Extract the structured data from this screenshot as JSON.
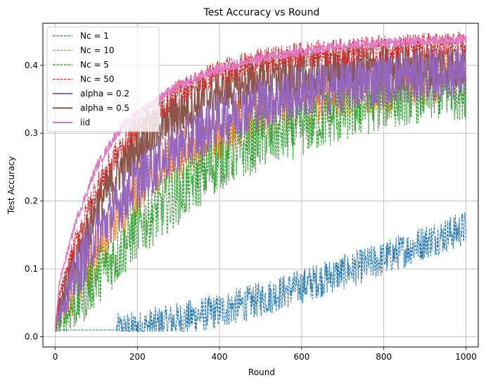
{
  "chart_data": {
    "type": "line",
    "title": "Test Accuracy vs Round",
    "xlabel": "Round",
    "ylabel": "Test Accuracy",
    "xlim": [
      -30,
      1030
    ],
    "ylim": [
      -0.015,
      0.462
    ],
    "xticks": [
      0,
      200,
      400,
      600,
      800,
      1000
    ],
    "xtick_labels": [
      "0",
      "200",
      "400",
      "600",
      "800",
      "1000"
    ],
    "yticks": [
      0.0,
      0.1,
      0.2,
      0.3,
      0.4
    ],
    "ytick_labels": [
      "0.0",
      "0.1",
      "0.2",
      "0.3",
      "0.4"
    ],
    "grid": true,
    "legend_position": "top-left",
    "series": [
      {
        "name": "Nc = 1",
        "color": "#1f77b4",
        "style": "dashed",
        "noise": 0.026,
        "x": [
          0,
          150,
          200,
          300,
          400,
          500,
          600,
          700,
          800,
          900,
          1000
        ],
        "y": [
          0.01,
          0.01,
          0.012,
          0.025,
          0.038,
          0.055,
          0.075,
          0.095,
          0.115,
          0.14,
          0.16
        ]
      },
      {
        "name": "Nc = 10",
        "color": "#ff7f0e",
        "style": "dashed",
        "noise": 0.04,
        "x": [
          0,
          10,
          50,
          100,
          150,
          200,
          300,
          400,
          500,
          600,
          700,
          800,
          900,
          1000
        ],
        "y": [
          0.01,
          0.03,
          0.07,
          0.12,
          0.17,
          0.22,
          0.27,
          0.3,
          0.33,
          0.35,
          0.36,
          0.37,
          0.38,
          0.39
        ]
      },
      {
        "name": "Nc = 5",
        "color": "#2ca02c",
        "style": "dashed",
        "noise": 0.045,
        "x": [
          0,
          10,
          50,
          100,
          150,
          200,
          300,
          400,
          500,
          600,
          700,
          800,
          900,
          1000
        ],
        "y": [
          0.01,
          0.02,
          0.05,
          0.09,
          0.12,
          0.16,
          0.21,
          0.26,
          0.29,
          0.31,
          0.33,
          0.35,
          0.36,
          0.365
        ]
      },
      {
        "name": "Nc = 50",
        "color": "#d62728",
        "style": "dashed",
        "noise": 0.02,
        "x": [
          0,
          10,
          50,
          100,
          150,
          200,
          300,
          400,
          500,
          600,
          700,
          800,
          900,
          1000
        ],
        "y": [
          0.01,
          0.06,
          0.14,
          0.22,
          0.27,
          0.31,
          0.36,
          0.39,
          0.405,
          0.415,
          0.42,
          0.425,
          0.428,
          0.43
        ]
      },
      {
        "name": "alpha = 0.2",
        "color": "#9467bd",
        "style": "solid",
        "noise": 0.04,
        "x": [
          0,
          10,
          50,
          100,
          150,
          200,
          300,
          400,
          500,
          600,
          700,
          800,
          900,
          1000
        ],
        "y": [
          0.01,
          0.04,
          0.09,
          0.15,
          0.19,
          0.23,
          0.28,
          0.32,
          0.345,
          0.36,
          0.37,
          0.38,
          0.385,
          0.39
        ]
      },
      {
        "name": "alpha = 0.5",
        "color": "#8c564b",
        "style": "solid",
        "noise": 0.035,
        "x": [
          0,
          10,
          50,
          100,
          150,
          200,
          300,
          400,
          500,
          600,
          700,
          800,
          900,
          1000
        ],
        "y": [
          0.01,
          0.05,
          0.11,
          0.19,
          0.24,
          0.28,
          0.33,
          0.36,
          0.375,
          0.385,
          0.39,
          0.395,
          0.4,
          0.4
        ]
      },
      {
        "name": "iid",
        "color": "#e377c2",
        "style": "solid",
        "noise": 0.007,
        "x": [
          0,
          10,
          50,
          100,
          150,
          200,
          300,
          400,
          500,
          600,
          700,
          800,
          900,
          1000
        ],
        "y": [
          0.01,
          0.08,
          0.17,
          0.25,
          0.3,
          0.33,
          0.37,
          0.395,
          0.41,
          0.42,
          0.43,
          0.433,
          0.436,
          0.438
        ]
      }
    ]
  }
}
